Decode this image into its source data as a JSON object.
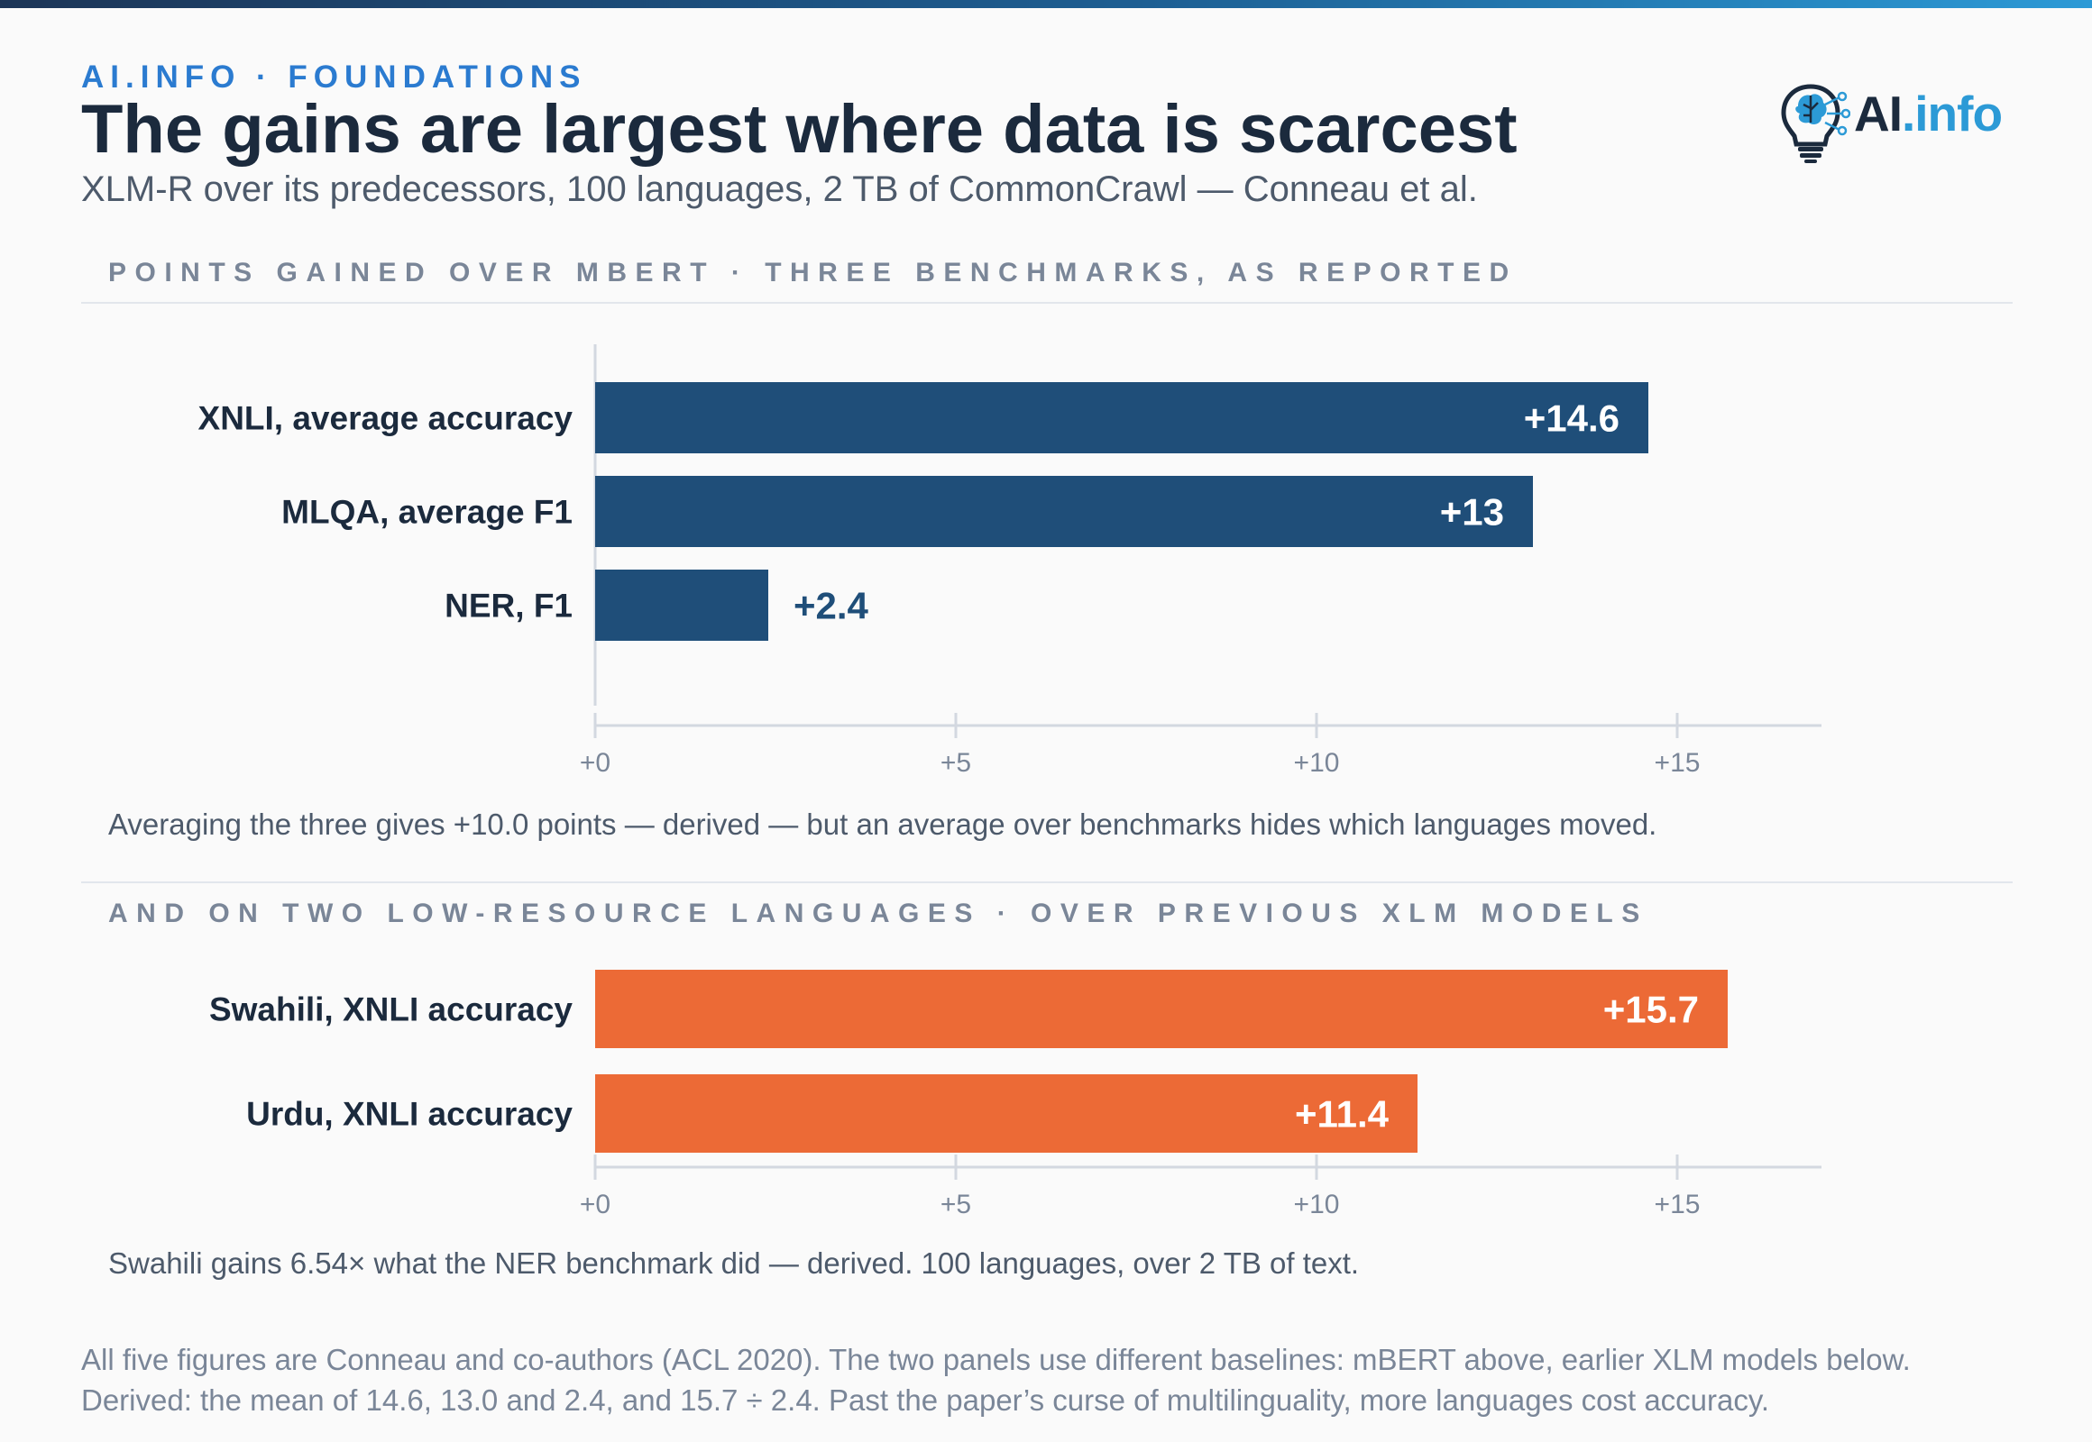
{
  "header": {
    "kicker": "AI.INFO · FOUNDATIONS",
    "title": "The gains are largest where data is scarcest",
    "subtitle": "XLM-R over its predecessors, 100 languages, 2 TB of CommonCrawl — Conneau et al.",
    "logo_text_main": "AI",
    "logo_text_accent": ".info",
    "logo_icon": "lightbulb-brain-icon"
  },
  "colors": {
    "navy_bar": "#1f4e79",
    "orange_bar": "#ec6a36",
    "title": "#1b2a3d",
    "kicker": "#2b7bd0"
  },
  "panel1": {
    "label": "POINTS GAINED OVER MBERT · THREE BENCHMARKS, AS REPORTED",
    "note": "Averaging the three gives +10.0 points — derived — but an average over benchmarks hides which languages moved."
  },
  "panel2": {
    "label": "AND ON TWO LOW-RESOURCE LANGUAGES · OVER PREVIOUS XLM MODELS",
    "note": "Swahili gains 6.54× what the NER benchmark did — derived. 100 languages, over 2 TB of text."
  },
  "footer": {
    "line1": "All five figures are Conneau and co-authors (ACL 2020). The two panels use different baselines: mBERT above, earlier XLM models below.",
    "line2": "Derived: the mean of 14.6, 13.0 and 2.4, and 15.7 ÷ 2.4. Past the paper’s curse of multilinguality, more languages cost accuracy."
  },
  "chart_data": [
    {
      "type": "bar",
      "orientation": "horizontal",
      "categories": [
        "XNLI, average accuracy",
        "MLQA, average F1",
        "NER, F1"
      ],
      "values": [
        14.6,
        13,
        2.4
      ],
      "value_labels": [
        "+14.6",
        "+13",
        "+2.4"
      ],
      "xlim": [
        0,
        17
      ],
      "xticks": [
        0,
        5,
        10,
        15
      ],
      "xtick_labels": [
        "+0",
        "+5",
        "+10",
        "+15"
      ],
      "color": "#1f4e79"
    },
    {
      "type": "bar",
      "orientation": "horizontal",
      "categories": [
        "Swahili, XNLI accuracy",
        "Urdu, XNLI accuracy"
      ],
      "values": [
        15.7,
        11.4
      ],
      "value_labels": [
        "+15.7",
        "+11.4"
      ],
      "xlim": [
        0,
        17
      ],
      "xticks": [
        0,
        5,
        10,
        15
      ],
      "xtick_labels": [
        "+0",
        "+5",
        "+10",
        "+15"
      ],
      "color": "#ec6a36"
    }
  ]
}
